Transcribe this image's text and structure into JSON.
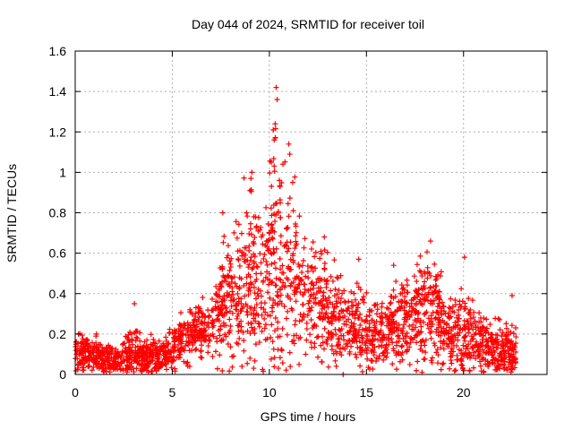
{
  "chart_data": {
    "type": "scatter",
    "title": "Day 044 of 2024, SRMTID for receiver toil",
    "xlabel": "GPS time / hours",
    "ylabel": "SRMTID / TECUs",
    "xlim": [
      0,
      24.3
    ],
    "ylim": [
      0,
      1.6
    ],
    "x_ticks": [
      0,
      5,
      10,
      15,
      20
    ],
    "y_ticks": [
      0,
      0.2,
      0.4,
      0.6,
      0.8,
      1,
      1.2,
      1.4,
      1.6
    ],
    "x_tick_labels": [
      "0",
      "5",
      "10",
      "15",
      "20"
    ],
    "y_tick_labels": [
      "0",
      "0.2",
      "0.4",
      "0.6",
      "0.8",
      "1",
      "1.2",
      "1.4",
      "1.6"
    ],
    "grid": true,
    "marker": "plus",
    "series_color": "#ff0000",
    "envelope": {
      "x": [
        0,
        0.5,
        1,
        1.5,
        2,
        2.5,
        3,
        3.5,
        4,
        4.5,
        5,
        5.5,
        6,
        6.5,
        7,
        7.5,
        8,
        8.5,
        9,
        9.5,
        10,
        10.5,
        11,
        11.5,
        12,
        12.5,
        13,
        13.5,
        14,
        14.5,
        15,
        15.5,
        16,
        16.5,
        17,
        17.5,
        18,
        18.5,
        19,
        19.5,
        20,
        20.5,
        21,
        21.5,
        22,
        22.5
      ],
      "center": [
        0.11,
        0.1,
        0.09,
        0.08,
        0.07,
        0.08,
        0.1,
        0.09,
        0.08,
        0.1,
        0.13,
        0.17,
        0.2,
        0.22,
        0.26,
        0.32,
        0.4,
        0.45,
        0.5,
        0.45,
        0.55,
        0.6,
        0.55,
        0.45,
        0.4,
        0.38,
        0.32,
        0.28,
        0.24,
        0.23,
        0.22,
        0.2,
        0.22,
        0.25,
        0.26,
        0.28,
        0.35,
        0.3,
        0.22,
        0.2,
        0.2,
        0.18,
        0.15,
        0.13,
        0.12,
        0.12
      ],
      "spread": [
        0.05,
        0.05,
        0.05,
        0.04,
        0.04,
        0.05,
        0.08,
        0.05,
        0.05,
        0.05,
        0.06,
        0.07,
        0.07,
        0.08,
        0.1,
        0.15,
        0.18,
        0.2,
        0.22,
        0.2,
        0.3,
        0.3,
        0.25,
        0.2,
        0.16,
        0.15,
        0.13,
        0.12,
        0.1,
        0.1,
        0.1,
        0.09,
        0.1,
        0.12,
        0.12,
        0.13,
        0.18,
        0.14,
        0.1,
        0.1,
        0.12,
        0.1,
        0.08,
        0.07,
        0.07,
        0.07
      ]
    },
    "peaks": [
      {
        "x": 10.35,
        "y": 1.42
      },
      {
        "x": 10.4,
        "y": 1.36
      },
      {
        "x": 10.3,
        "y": 1.24
      },
      {
        "x": 10.2,
        "y": 1.21
      },
      {
        "x": 10.25,
        "y": 1.16
      },
      {
        "x": 11.0,
        "y": 1.14
      },
      {
        "x": 11.05,
        "y": 1.09
      },
      {
        "x": 10.1,
        "y": 1.05
      },
      {
        "x": 9.1,
        "y": 1.0
      },
      {
        "x": 9.05,
        "y": 0.97
      },
      {
        "x": 9.0,
        "y": 0.91
      },
      {
        "x": 10.55,
        "y": 0.93
      },
      {
        "x": 11.2,
        "y": 0.95
      },
      {
        "x": 7.6,
        "y": 0.8
      },
      {
        "x": 9.2,
        "y": 0.78
      },
      {
        "x": 18.3,
        "y": 0.66
      },
      {
        "x": 20.05,
        "y": 0.58
      },
      {
        "x": 14.6,
        "y": 0.57
      },
      {
        "x": 16.4,
        "y": 0.54
      },
      {
        "x": 3.05,
        "y": 0.35
      },
      {
        "x": 22.5,
        "y": 0.39
      },
      {
        "x": 13.8,
        "y": 0.0
      }
    ],
    "x_end": 22.7
  }
}
